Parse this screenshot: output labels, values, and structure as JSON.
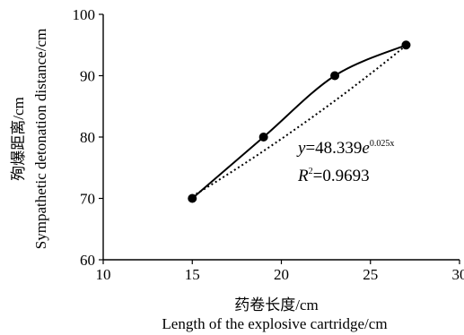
{
  "chart_data": {
    "type": "scatter",
    "x": [
      15,
      19,
      23,
      27
    ],
    "series": [
      {
        "values": [
          70,
          80,
          90,
          95
        ],
        "style": "solid smooth line with filled circle markers"
      },
      {
        "style": "dotted exponential trendline"
      }
    ],
    "trendline": {
      "a": 48.339,
      "b": 0.025,
      "x_range": [
        15,
        27
      ]
    },
    "xlim": [
      10,
      30
    ],
    "ylim": [
      60,
      100
    ],
    "x_ticks": [
      "10",
      "15",
      "20",
      "25",
      "30"
    ],
    "y_ticks": [
      "60",
      "70",
      "80",
      "90",
      "100"
    ],
    "xlabel_cn": "药卷长度/cm",
    "xlabel_en": "Length of the explosive cartridge/cm",
    "ylabel_cn": "殉爆距离/cm",
    "ylabel_en": "Sympathetic detonation distance/cm",
    "equation": {
      "y": "y",
      "eq_prefix": "=48.339",
      "e": "e",
      "exponent": "0.025x"
    },
    "r2": {
      "r": "R",
      "sup": "2",
      "value": "=0.9693"
    },
    "grid": false,
    "legend": "none",
    "colors": {
      "line": "#000000",
      "marker": "#000000",
      "trend": "#000000"
    }
  }
}
